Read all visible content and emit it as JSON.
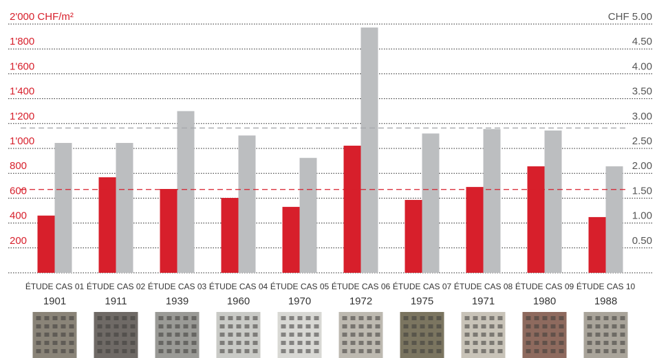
{
  "chart_data": {
    "type": "bar",
    "categories": [
      "ÉTUDE CAS 01",
      "ÉTUDE CAS 02",
      "ÉTUDE CAS 03",
      "ÉTUDE CAS 04",
      "ÉTUDE CAS 05",
      "ÉTUDE CAS 06",
      "ÉTUDE CAS 07",
      "ÉTUDE CAS 08",
      "ÉTUDE CAS 09",
      "ÉTUDE CAS 10"
    ],
    "years": [
      "1901",
      "1911",
      "1939",
      "1960",
      "1970",
      "1972",
      "1975",
      "1971",
      "1980",
      "1988"
    ],
    "series": [
      {
        "color": "#d71f2b",
        "values": [
          460,
          768,
          674,
          602,
          530,
          1022,
          586,
          690,
          856,
          448
        ]
      },
      {
        "color": "#bcbec0",
        "axis": "y2",
        "values": [
          2.61,
          2.61,
          3.25,
          2.76,
          2.31,
          4.93,
          2.8,
          2.89,
          2.86,
          2.14
        ]
      }
    ],
    "ylim": [
      0,
      2000
    ],
    "yticks": [
      {
        "value": 200,
        "label": "200"
      },
      {
        "value": 400,
        "label": "400"
      },
      {
        "value": 600,
        "label": "600"
      },
      {
        "value": 800,
        "label": "800"
      },
      {
        "value": 1000,
        "label": "1'000"
      },
      {
        "value": 1200,
        "label": "1'200"
      },
      {
        "value": 1400,
        "label": "1'400"
      },
      {
        "value": 1600,
        "label": "1'600"
      },
      {
        "value": 1800,
        "label": "1'800"
      },
      {
        "value": 2000,
        "label": "2'000 CHF/m²"
      }
    ],
    "y2lim": [
      0,
      5
    ],
    "y2ticks": [
      {
        "value": 0.5,
        "label": "0.50"
      },
      {
        "value": 1,
        "label": "1.00"
      },
      {
        "value": 1.5,
        "label": "1.50"
      },
      {
        "value": 2,
        "label": "2.00"
      },
      {
        "value": 2.5,
        "label": "2.50"
      },
      {
        "value": 3,
        "label": "3.00"
      },
      {
        "value": 3.5,
        "label": "3.50"
      },
      {
        "value": 4,
        "label": "4.00"
      },
      {
        "value": 4.5,
        "label": "4.50"
      },
      {
        "value": 5,
        "label": "CHF 5.00"
      }
    ],
    "reference_lines": [
      {
        "value": 670,
        "axis": "y",
        "color": "#d71f2b"
      },
      {
        "value": 2.91,
        "axis": "y2",
        "color": "#a7a9ac"
      }
    ],
    "grid": true
  }
}
